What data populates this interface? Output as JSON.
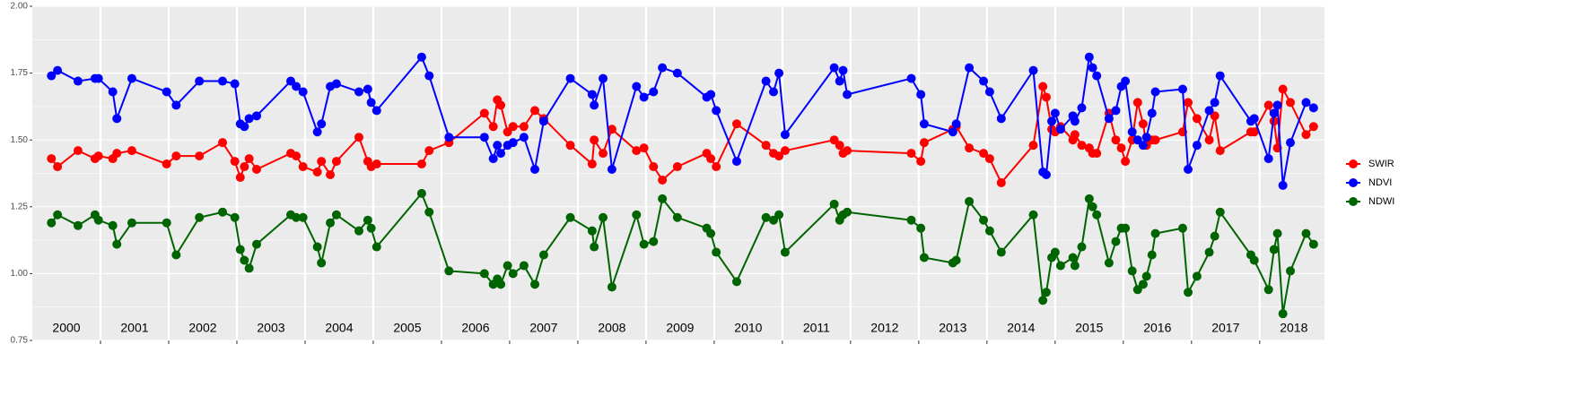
{
  "chart_data": {
    "type": "line",
    "x": [
      2000.28,
      2000.37,
      2000.67,
      2000.92,
      2000.97,
      2001.18,
      2001.24,
      2001.46,
      2001.97,
      2002.11,
      2002.45,
      2002.79,
      2002.97,
      2003.05,
      2003.11,
      2003.18,
      2003.29,
      2003.79,
      2003.87,
      2003.97,
      2004.18,
      2004.24,
      2004.37,
      2004.46,
      2004.79,
      2004.92,
      2004.97,
      2005.05,
      2005.71,
      2005.82,
      2006.11,
      2006.63,
      2006.76,
      2006.82,
      2006.87,
      2006.97,
      2007.05,
      2007.21,
      2007.37,
      2007.5,
      2007.89,
      2008.21,
      2008.24,
      2008.37,
      2008.5,
      2008.86,
      2008.97,
      2009.11,
      2009.24,
      2009.46,
      2009.89,
      2009.95,
      2010.03,
      2010.33,
      2010.76,
      2010.87,
      2010.95,
      2011.04,
      2011.76,
      2011.84,
      2011.89,
      2011.95,
      2012.89,
      2013.03,
      2013.08,
      2013.5,
      2013.55,
      2013.74,
      2013.95,
      2014.04,
      2014.21,
      2014.68,
      2014.82,
      2014.87,
      2014.95,
      2015.0,
      2015.08,
      2015.26,
      2015.29,
      2015.39,
      2015.5,
      2015.55,
      2015.61,
      2015.79,
      2015.89,
      2015.97,
      2016.03,
      2016.13,
      2016.21,
      2016.29,
      2016.34,
      2016.42,
      2016.47,
      2016.87,
      2016.95,
      2017.08,
      2017.26,
      2017.34,
      2017.42,
      2017.87,
      2017.92,
      2018.13,
      2018.21,
      2018.26,
      2018.34,
      2018.45,
      2018.68,
      2018.79
    ],
    "series": [
      {
        "name": "SWIR",
        "color": "#ff0000",
        "values": [
          1.43,
          1.4,
          1.46,
          1.43,
          1.44,
          1.43,
          1.45,
          1.46,
          1.41,
          1.44,
          1.44,
          1.49,
          1.42,
          1.36,
          1.4,
          1.43,
          1.39,
          1.45,
          1.44,
          1.4,
          1.38,
          1.42,
          1.37,
          1.42,
          1.51,
          1.42,
          1.4,
          1.41,
          1.41,
          1.46,
          1.49,
          1.6,
          1.55,
          1.65,
          1.63,
          1.53,
          1.55,
          1.55,
          1.61,
          1.58,
          1.48,
          1.41,
          1.5,
          1.45,
          1.54,
          1.46,
          1.47,
          1.4,
          1.35,
          1.4,
          1.45,
          1.43,
          1.4,
          1.56,
          1.48,
          1.45,
          1.44,
          1.46,
          1.5,
          1.48,
          1.45,
          1.46,
          1.45,
          1.42,
          1.49,
          1.54,
          1.55,
          1.47,
          1.45,
          1.43,
          1.34,
          1.48,
          1.7,
          1.66,
          1.54,
          1.53,
          1.55,
          1.5,
          1.52,
          1.48,
          1.47,
          1.45,
          1.45,
          1.6,
          1.5,
          1.47,
          1.42,
          1.5,
          1.64,
          1.56,
          1.48,
          1.5,
          1.5,
          1.53,
          1.64,
          1.58,
          1.5,
          1.59,
          1.46,
          1.53,
          1.53,
          1.63,
          1.57,
          1.47,
          1.69,
          1.64,
          1.52,
          1.55
        ]
      },
      {
        "name": "NDVI",
        "color": "#0000ff",
        "values": [
          1.74,
          1.76,
          1.72,
          1.73,
          1.73,
          1.68,
          1.58,
          1.73,
          1.68,
          1.63,
          1.72,
          1.72,
          1.71,
          1.56,
          1.55,
          1.58,
          1.59,
          1.72,
          1.7,
          1.68,
          1.53,
          1.56,
          1.7,
          1.71,
          1.68,
          1.69,
          1.64,
          1.61,
          1.81,
          1.74,
          1.51,
          1.51,
          1.43,
          1.48,
          1.45,
          1.48,
          1.49,
          1.51,
          1.39,
          1.57,
          1.73,
          1.67,
          1.63,
          1.73,
          1.39,
          1.7,
          1.66,
          1.68,
          1.77,
          1.75,
          1.66,
          1.67,
          1.61,
          1.42,
          1.72,
          1.68,
          1.75,
          1.52,
          1.77,
          1.72,
          1.76,
          1.67,
          1.73,
          1.67,
          1.56,
          1.53,
          1.56,
          1.77,
          1.72,
          1.68,
          1.58,
          1.76,
          1.38,
          1.37,
          1.57,
          1.6,
          1.54,
          1.59,
          1.57,
          1.62,
          1.81,
          1.77,
          1.74,
          1.58,
          1.61,
          1.7,
          1.72,
          1.53,
          1.5,
          1.48,
          1.51,
          1.6,
          1.68,
          1.69,
          1.39,
          1.48,
          1.61,
          1.64,
          1.74,
          1.57,
          1.58,
          1.43,
          1.6,
          1.63,
          1.33,
          1.49,
          1.64,
          1.62
        ]
      },
      {
        "name": "NDWI",
        "color": "#006400",
        "values": [
          1.19,
          1.22,
          1.18,
          1.22,
          1.2,
          1.18,
          1.11,
          1.19,
          1.19,
          1.07,
          1.21,
          1.23,
          1.21,
          1.09,
          1.05,
          1.02,
          1.11,
          1.22,
          1.21,
          1.21,
          1.1,
          1.04,
          1.19,
          1.22,
          1.16,
          1.2,
          1.17,
          1.1,
          1.3,
          1.23,
          1.01,
          1.0,
          0.96,
          0.98,
          0.96,
          1.03,
          1.0,
          1.03,
          0.96,
          1.07,
          1.21,
          1.16,
          1.1,
          1.21,
          0.95,
          1.22,
          1.11,
          1.12,
          1.28,
          1.21,
          1.17,
          1.15,
          1.08,
          0.97,
          1.21,
          1.2,
          1.22,
          1.08,
          1.26,
          1.2,
          1.22,
          1.23,
          1.2,
          1.17,
          1.06,
          1.04,
          1.05,
          1.27,
          1.2,
          1.16,
          1.08,
          1.22,
          0.9,
          0.93,
          1.06,
          1.08,
          1.03,
          1.06,
          1.03,
          1.1,
          1.28,
          1.25,
          1.22,
          1.04,
          1.12,
          1.17,
          1.17,
          1.01,
          0.94,
          0.96,
          0.99,
          1.07,
          1.15,
          1.17,
          0.93,
          0.99,
          1.08,
          1.14,
          1.23,
          1.07,
          1.05,
          0.94,
          1.09,
          1.15,
          0.85,
          1.01,
          1.15,
          1.11
        ]
      }
    ],
    "xlim": [
      2000,
      2018.95
    ],
    "ylim": [
      0.75,
      2.0
    ],
    "yticks": [
      {
        "value": 0.75,
        "label": "0.75"
      },
      {
        "value": 1.0,
        "label": "1.00"
      },
      {
        "value": 1.25,
        "label": "1.25"
      },
      {
        "value": 1.5,
        "label": "1.50"
      },
      {
        "value": 1.75,
        "label": "1.75"
      },
      {
        "value": 2.0,
        "label": "2.00"
      }
    ],
    "xgrid": [
      2001,
      2002,
      2003,
      2004,
      2005,
      2006,
      2007,
      2008,
      2009,
      2010,
      2011,
      2012,
      2013,
      2014,
      2015,
      2016,
      2017,
      2018
    ],
    "x_labels": [
      {
        "value": 2000.5,
        "label": "2000"
      },
      {
        "value": 2001.5,
        "label": "2001"
      },
      {
        "value": 2002.5,
        "label": "2002"
      },
      {
        "value": 2003.5,
        "label": "2003"
      },
      {
        "value": 2004.5,
        "label": "2004"
      },
      {
        "value": 2005.5,
        "label": "2005"
      },
      {
        "value": 2006.5,
        "label": "2006"
      },
      {
        "value": 2007.5,
        "label": "2007"
      },
      {
        "value": 2008.5,
        "label": "2008"
      },
      {
        "value": 2009.5,
        "label": "2009"
      },
      {
        "value": 2010.5,
        "label": "2010"
      },
      {
        "value": 2011.5,
        "label": "2011"
      },
      {
        "value": 2012.5,
        "label": "2012"
      },
      {
        "value": 2013.5,
        "label": "2013"
      },
      {
        "value": 2014.5,
        "label": "2014"
      },
      {
        "value": 2015.5,
        "label": "2015"
      },
      {
        "value": 2016.5,
        "label": "2016"
      },
      {
        "value": 2017.5,
        "label": "2017"
      },
      {
        "value": 2018.5,
        "label": "2018"
      }
    ],
    "grid": true,
    "legend": "right"
  }
}
